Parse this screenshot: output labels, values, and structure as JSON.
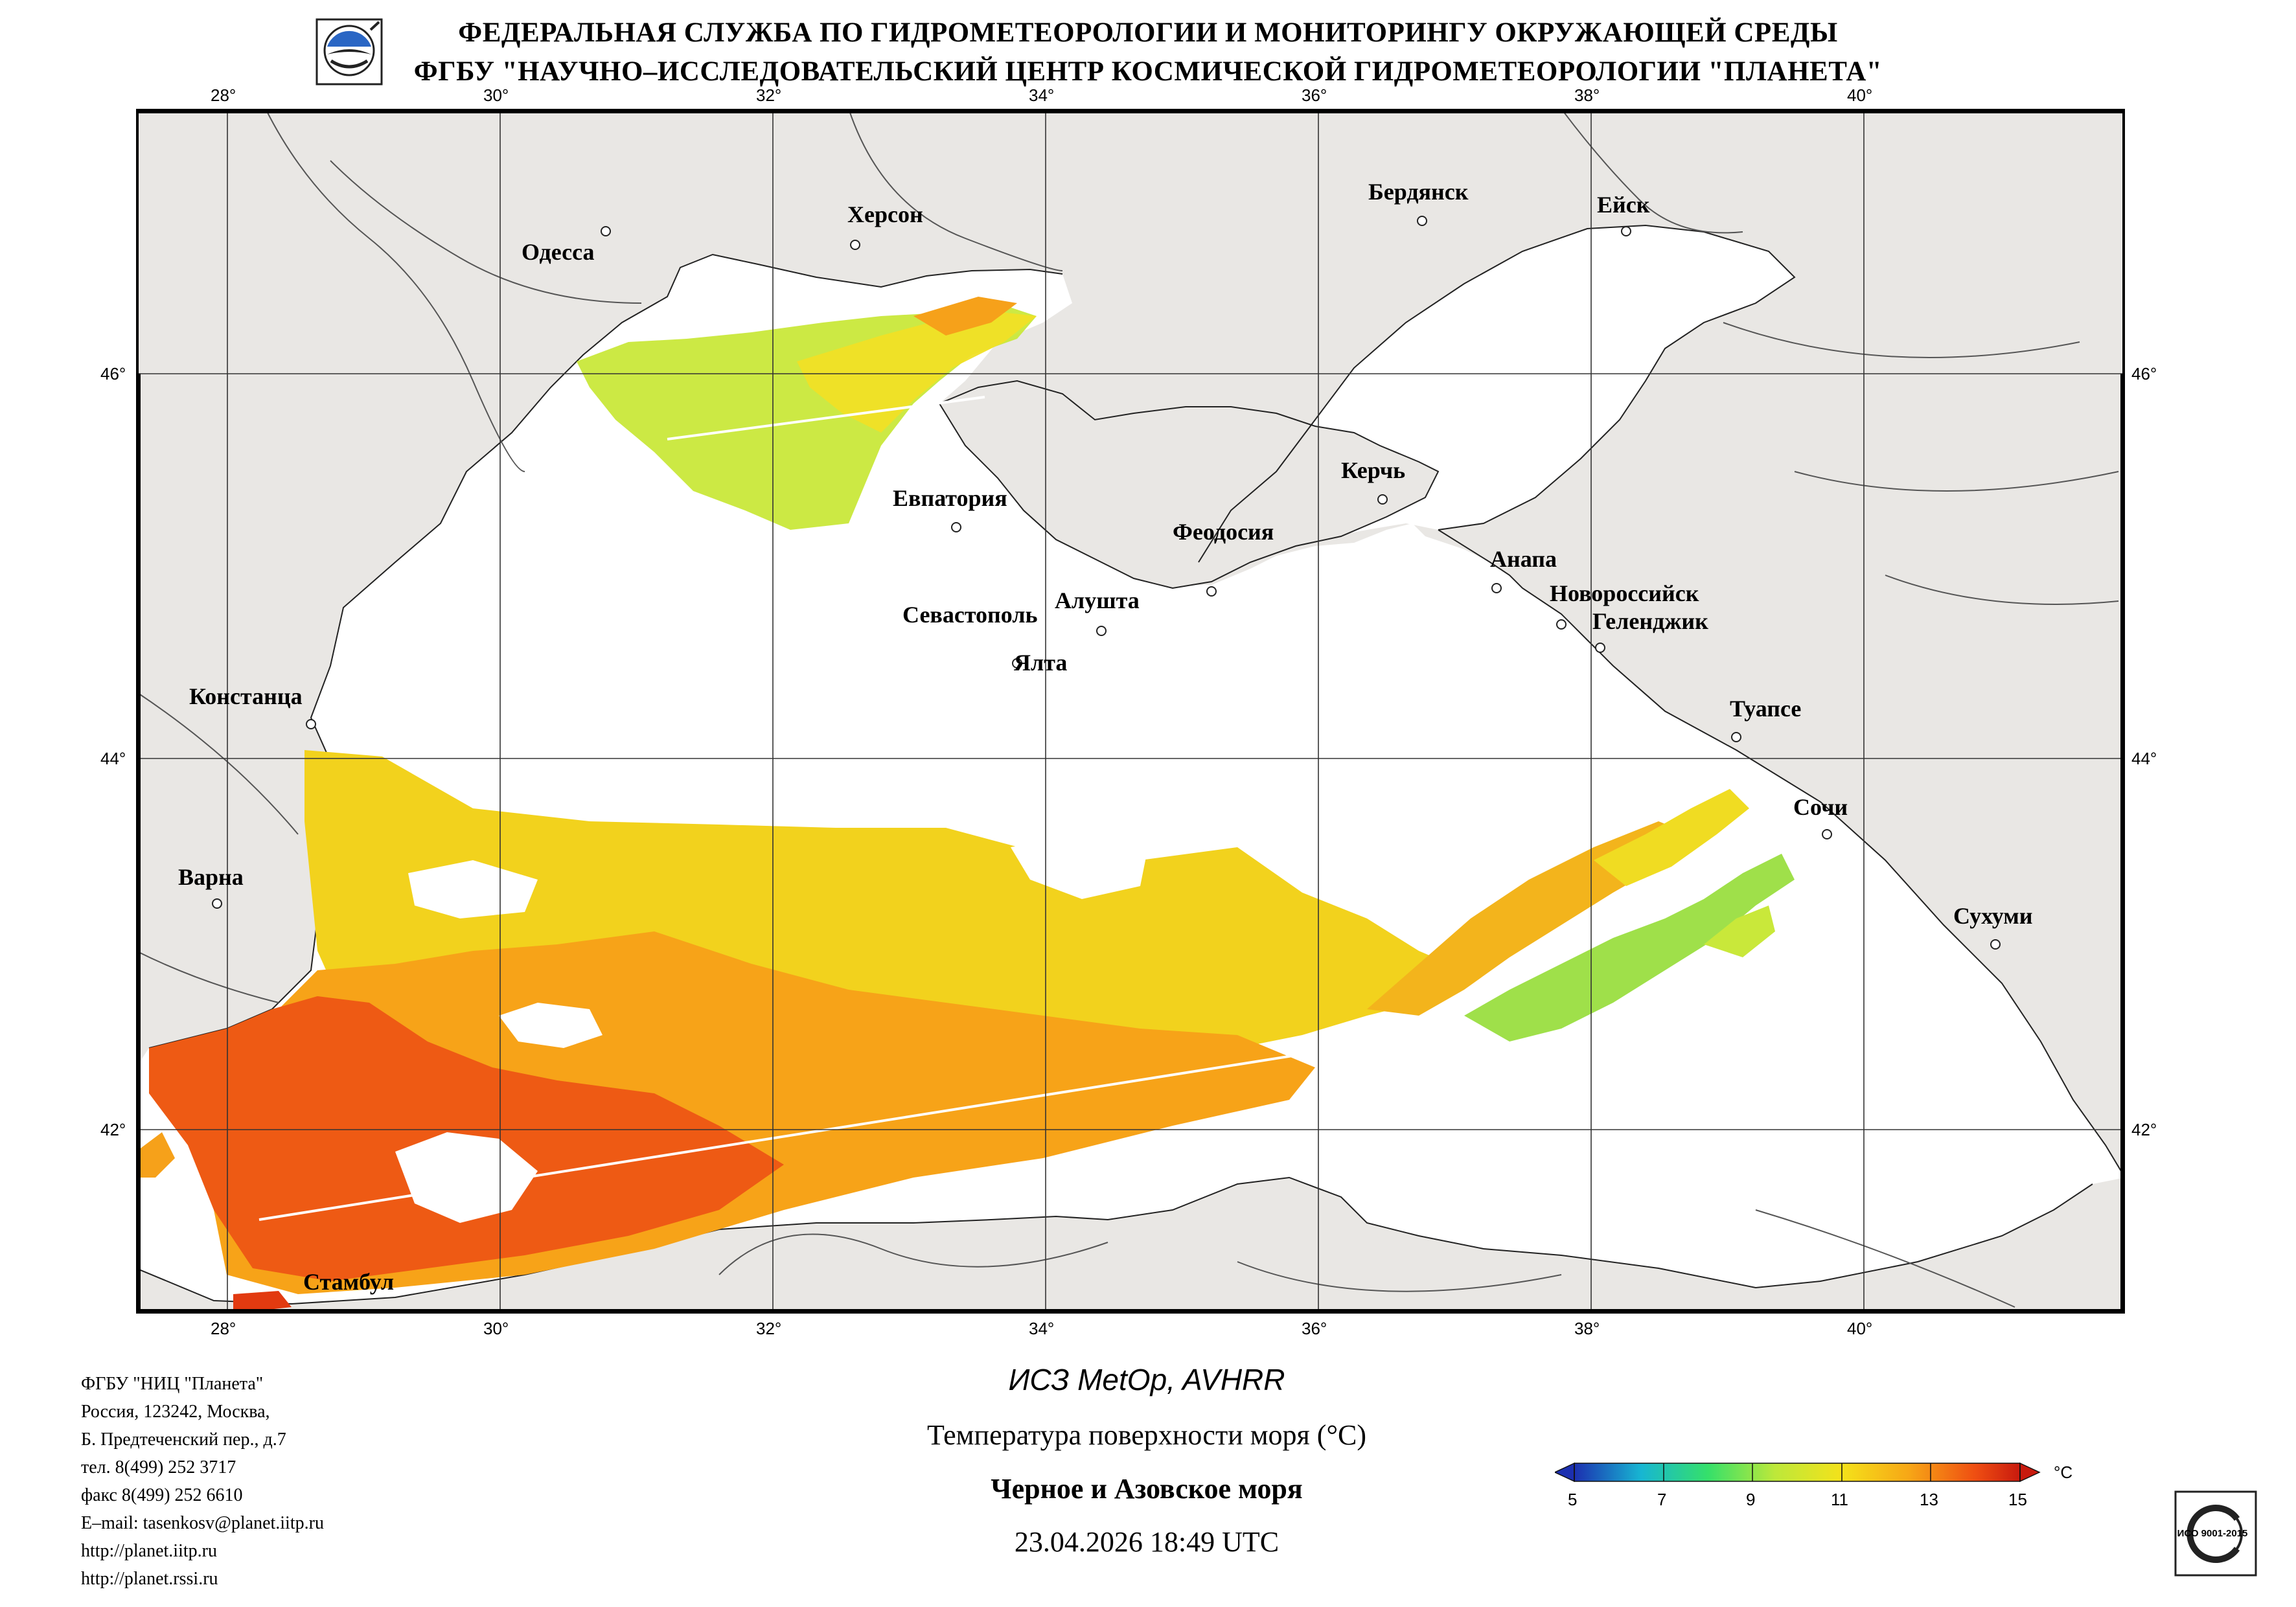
{
  "header": {
    "line1": "ФЕДЕРАЛЬНАЯ СЛУЖБА ПО ГИДРОМЕТЕОРОЛОГИИ И МОНИТОРИНГУ ОКРУЖАЮЩЕЙ СРЕДЫ",
    "line2": "ФГБУ \"НАУЧНО–ИССЛЕДОВАТЕЛЬСКИЙ ЦЕНТР КОСМИЧЕСКОЙ ГИДРОМЕТЕОРОЛОГИИ \"ПЛАНЕТА\""
  },
  "map": {
    "lon_ticks": [
      "28°",
      "30°",
      "32°",
      "34°",
      "36°",
      "38°",
      "40°"
    ],
    "lat_ticks": [
      "46°",
      "44°",
      "42°"
    ],
    "cities": [
      "Одесса",
      "Херсон",
      "Бердянск",
      "Ейск",
      "Евпатория",
      "Керчь",
      "Феодосия",
      "Анапа",
      "Новороссийск",
      "Геленджик",
      "Севастополь",
      "Алушта",
      "Ялта",
      "Констанца",
      "Туапсе",
      "Сочи",
      "Варна",
      "Сухуми",
      "Стамбул"
    ],
    "colors": {
      "land": "#e9e7e4",
      "sea": "#ffffff",
      "grid": "#333333",
      "border": "#000000"
    }
  },
  "caption": {
    "satellite": "ИСЗ MetOp, AVHRR",
    "parameter": "Температура поверхности моря (°С)",
    "region": "Черное и Азовское моря",
    "datetime": "23.04.2026 18:49 UTC"
  },
  "colorbar": {
    "labels": [
      "5",
      "7",
      "9",
      "11",
      "13",
      "15"
    ],
    "unit": "°C",
    "colors": [
      "#1c2fb0",
      "#17b6d2",
      "#35e06a",
      "#bde83a",
      "#f4e21a",
      "#f7a716",
      "#ef4e12",
      "#c81a0e"
    ]
  },
  "org": {
    "lines": [
      "ФГБУ \"НИЦ \"Планета\"",
      "Россия, 123242, Москва,",
      "Б. Предтеченский пер., д.7",
      "тел. 8(499) 252 3717",
      "факс 8(499) 252 6610",
      "E–mail: tasenkosv@planet.iitp.ru",
      "http://planet.iitp.ru",
      "http://planet.rssi.ru"
    ]
  },
  "certificate": {
    "text": "ИСО 9001-2015"
  }
}
